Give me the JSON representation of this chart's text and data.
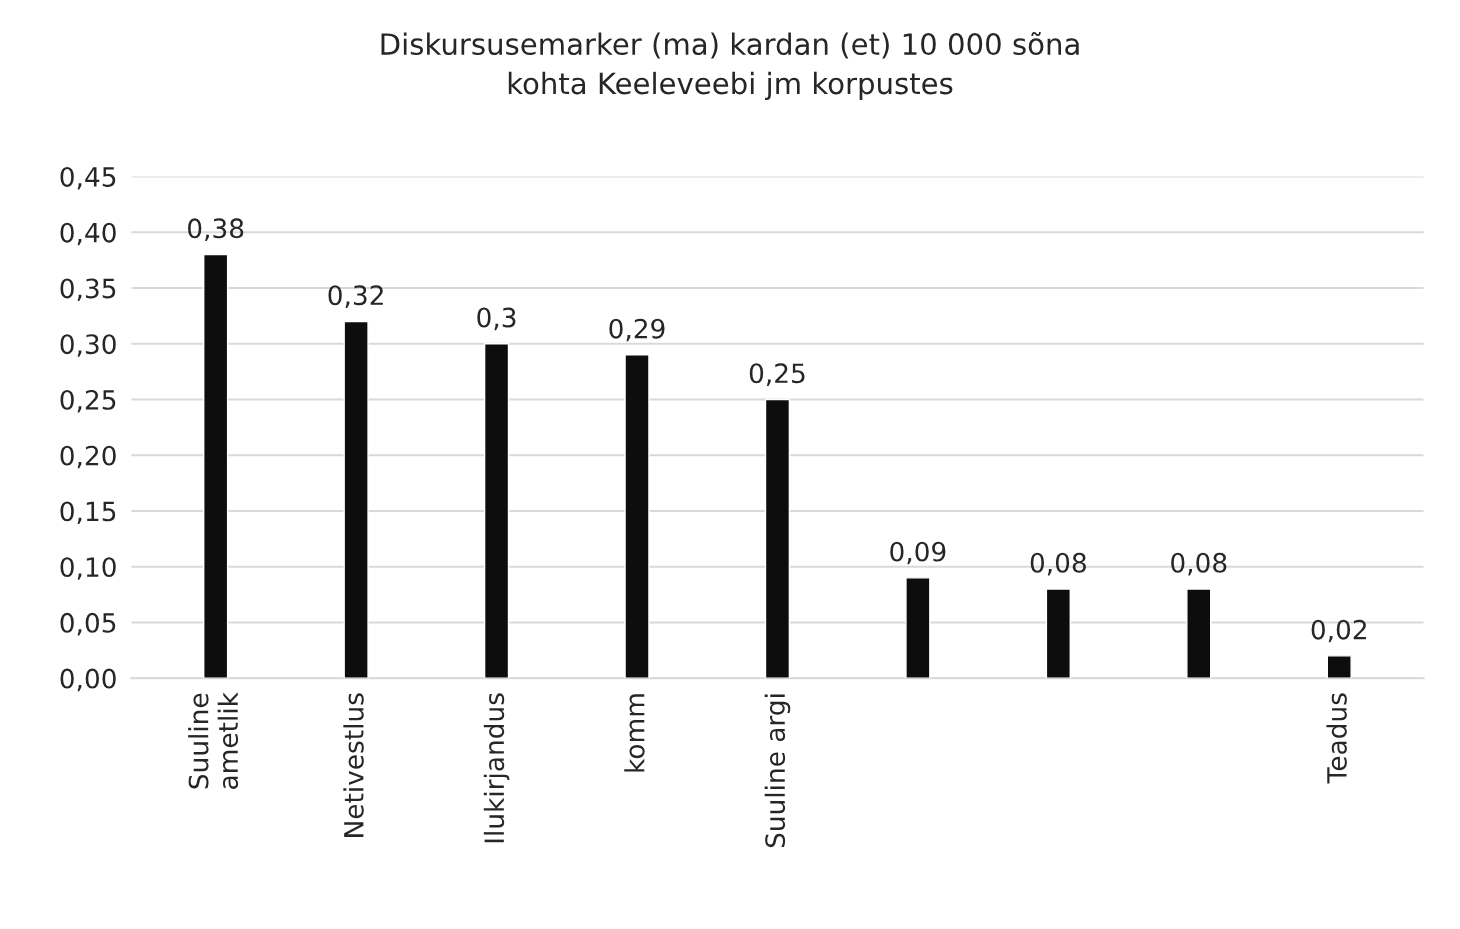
{
  "chart_data": {
    "type": "bar",
    "title": "Diskursusemarker (ma) kardan (et) 10 000 sõna\nkohta Keeleveebi jm korpustes",
    "categories": [
      "Suuline\nametlik",
      "Netivestlus",
      "Ilukirjandus",
      "komm",
      "Suuline argi",
      null,
      null,
      null,
      "Teadus"
    ],
    "values": [
      0.38,
      0.32,
      0.3,
      0.29,
      0.25,
      0.09,
      0.08,
      0.08,
      0.02
    ],
    "value_labels": [
      "0,38",
      "0,32",
      "0,3",
      "0,29",
      "0,25",
      "0,09",
      "0,08",
      "0,08",
      "0,02"
    ],
    "color": "#0d0d0d",
    "ylim": [
      0,
      0.45
    ],
    "yticks": [
      {
        "value": 0,
        "label": "0,00"
      },
      {
        "value": 0.05,
        "label": "0,05"
      },
      {
        "value": 0.1,
        "label": "0,10"
      },
      {
        "value": 0.15,
        "label": "0,15"
      },
      {
        "value": 0.2,
        "label": "0,20"
      },
      {
        "value": 0.25,
        "label": "0,25"
      },
      {
        "value": 0.3,
        "label": "0,30"
      },
      {
        "value": 0.35,
        "label": "0,35"
      },
      {
        "value": 0.4,
        "label": "0,40"
      },
      {
        "value": 0.45,
        "label": "0,45"
      }
    ],
    "grid": "y",
    "legend": false
  }
}
